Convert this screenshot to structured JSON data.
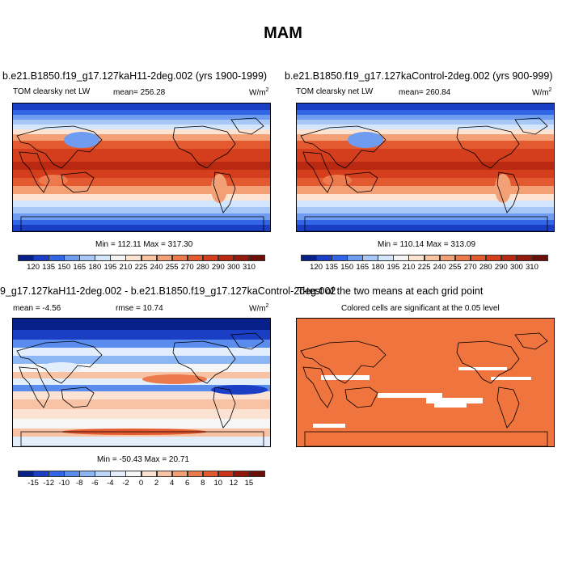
{
  "page": {
    "title": "MAM"
  },
  "panels": [
    {
      "id": "case",
      "title": "b.e21.B1850.f19_g17.127kaH11-2deg.002 (yrs 1900-1999)",
      "variable": "TOM clearsky net LW",
      "mean_label": "mean= 256.28",
      "units": "W/m",
      "units_sup": "2",
      "minmax": "Min = 112.11 Max = 317.30",
      "colorbar_ticks": [
        "120",
        "135",
        "150",
        "165",
        "180",
        "195",
        "210",
        "225",
        "240",
        "255",
        "270",
        "280",
        "290",
        "300",
        "310"
      ]
    },
    {
      "id": "control",
      "title": "b.e21.B1850.f19_g17.127kaControl-2deg.002 (yrs 900-999)",
      "variable": "TOM clearsky net LW",
      "mean_label": "mean= 260.84",
      "units": "W/m",
      "units_sup": "2",
      "minmax": "Min = 110.14 Max = 313.09",
      "colorbar_ticks": [
        "120",
        "135",
        "150",
        "165",
        "180",
        "195",
        "210",
        "225",
        "240",
        "255",
        "270",
        "280",
        "290",
        "300",
        "310"
      ]
    },
    {
      "id": "difference",
      "title": "9_g17.127kaH11-2deg.002 - b.e21.B1850.f19_g17.127kaControl-2deg.002",
      "mean_label": "mean = -4.56",
      "rmse_label": "rmse = 10.74",
      "units": "W/m",
      "units_sup": "2",
      "minmax": "Min = -50.43 Max = 20.71",
      "colorbar_ticks": [
        "-15",
        "-12",
        "-10",
        "-8",
        "-6",
        "-4",
        "-2",
        "0",
        "2",
        "4",
        "6",
        "8",
        "10",
        "12",
        "15"
      ]
    },
    {
      "id": "significance",
      "title": "T-test of the two means at each grid point",
      "subtitle": "Colored cells are significant at the 0.05 level"
    }
  ],
  "colors": {
    "abs_scale": [
      "#08208a",
      "#1a3fc4",
      "#3366e6",
      "#6e9cf0",
      "#a7c8f7",
      "#d4e6fb",
      "#f4f4f4",
      "#fde3d2",
      "#f8c4a4",
      "#f3a076",
      "#ec7a4d",
      "#e45a30",
      "#d43e1c",
      "#b92912",
      "#931a0d",
      "#6b0f08"
    ],
    "diff_scale": [
      "#08208a",
      "#1a3fc4",
      "#3366e6",
      "#5a8cee",
      "#8db6f4",
      "#bcd6f9",
      "#e3eefc",
      "#f6f6f6",
      "#fbe2d3",
      "#f8c3a4",
      "#f3a076",
      "#ec7a4d",
      "#e45a30",
      "#c9341a",
      "#8f180b",
      "#6b0f08"
    ],
    "significance": "#f0743e"
  }
}
